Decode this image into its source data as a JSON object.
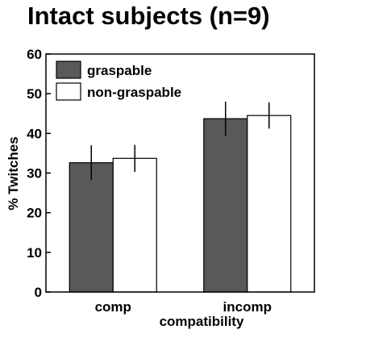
{
  "chart_data": {
    "type": "bar",
    "title": "Intact subjects (n=9)",
    "xlabel": "compatibility",
    "ylabel": "% Twitches",
    "categories": [
      "comp",
      "incomp"
    ],
    "ylim": [
      0,
      60
    ],
    "yticks": [
      0,
      10,
      20,
      30,
      40,
      50,
      60
    ],
    "grid": false,
    "legend_position": "top-left",
    "series": [
      {
        "name": "graspable",
        "color": "#595959",
        "values": [
          32.6,
          43.7
        ],
        "errors": [
          4.4,
          4.3
        ]
      },
      {
        "name": "non-graspable",
        "color": "#ffffff",
        "values": [
          33.7,
          44.5
        ],
        "errors": [
          3.4,
          3.3
        ]
      }
    ]
  }
}
